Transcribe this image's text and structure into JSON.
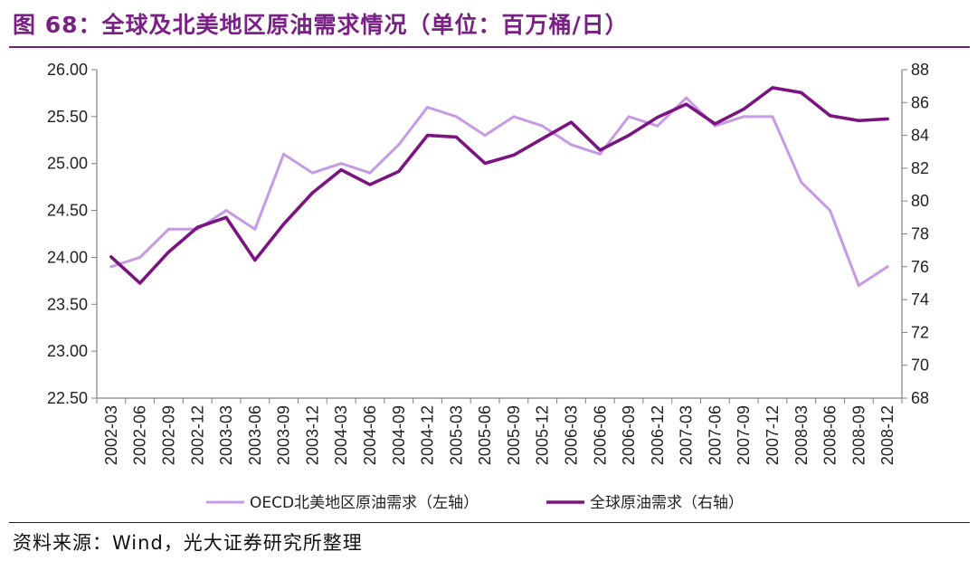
{
  "figure": {
    "title": "图 68：全球及北美地区原油需求情况（单位：百万桶/日）",
    "source": "资料来源：Wind，光大证券研究所整理"
  },
  "chart_data": {
    "type": "line",
    "x": [
      "2002-03",
      "2002-06",
      "2002-09",
      "2002-12",
      "2003-03",
      "2003-06",
      "2003-09",
      "2003-12",
      "2004-03",
      "2004-06",
      "2004-09",
      "2004-12",
      "2005-03",
      "2005-06",
      "2005-09",
      "2005-12",
      "2006-03",
      "2006-06",
      "2006-09",
      "2006-12",
      "2007-03",
      "2007-06",
      "2007-09",
      "2007-12",
      "2008-03",
      "2008-06",
      "2008-09",
      "2008-12"
    ],
    "y_left": {
      "ylim": [
        22.5,
        26.0
      ],
      "ticks": [
        "22.50",
        "23.00",
        "23.50",
        "24.00",
        "24.50",
        "25.00",
        "25.50",
        "26.00"
      ]
    },
    "y_right": {
      "ylim": [
        68,
        88
      ],
      "ticks": [
        "68",
        "70",
        "72",
        "74",
        "76",
        "78",
        "80",
        "82",
        "84",
        "86",
        "88"
      ]
    },
    "series": [
      {
        "name": "OECD北美地区原油需求（左轴）",
        "axis": "left",
        "color": "#c79ae6",
        "values": [
          23.9,
          24.0,
          24.3,
          24.3,
          24.5,
          24.3,
          25.1,
          24.9,
          25.0,
          24.9,
          25.2,
          25.6,
          25.5,
          25.3,
          25.5,
          25.4,
          25.2,
          25.1,
          25.5,
          25.4,
          25.7,
          25.4,
          25.5,
          25.5,
          24.8,
          24.5,
          23.7,
          23.9
        ]
      },
      {
        "name": "全球原油需求（右轴）",
        "axis": "right",
        "color": "#7b1480",
        "values": [
          76.6,
          75.0,
          76.9,
          78.4,
          79.0,
          76.4,
          78.6,
          80.5,
          81.9,
          81.0,
          81.8,
          84.0,
          83.9,
          82.3,
          82.8,
          83.8,
          84.8,
          83.1,
          84.0,
          85.1,
          85.9,
          84.7,
          85.6,
          86.9,
          86.6,
          85.2,
          84.9,
          85.0
        ]
      }
    ],
    "grid": false,
    "legend_position": "bottom"
  }
}
